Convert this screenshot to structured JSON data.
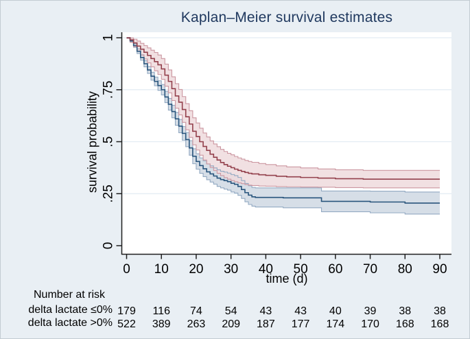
{
  "title": "Kaplan–Meier survival estimates",
  "colors": {
    "page_bg": "#e9eff4",
    "plot_bg": "#ffffff",
    "title": "#20395f",
    "grid": "#e2ecf3",
    "axis": "#1f1f1f",
    "red_line": "#93404c",
    "red_band_fill": "#efdadd",
    "red_band_edge": "#cb96a0",
    "blue_line": "#28547c",
    "blue_band_fill": "#d6dee7",
    "blue_band_edge": "#92a9c2"
  },
  "at_risk": {
    "header": "Number at risk",
    "rows": [
      {
        "label": "delta lactate ≤0%",
        "counts": [
          179,
          116,
          74,
          54,
          43,
          43,
          40,
          39,
          38,
          38
        ]
      },
      {
        "label": "delta lactate >0%",
        "counts": [
          522,
          389,
          263,
          209,
          187,
          177,
          174,
          170,
          168,
          168
        ]
      }
    ]
  },
  "chart_data": {
    "type": "line",
    "subtype": "kaplan-meier-step",
    "title": "Kaplan–Meier survival estimates",
    "xlabel": "time (d)",
    "ylabel": "survival probability",
    "xlim": [
      0,
      90
    ],
    "ylim": [
      0,
      1
    ],
    "grid": true,
    "x_ticks": [
      0,
      10,
      20,
      30,
      40,
      50,
      60,
      70,
      80,
      90
    ],
    "x_tick_labels": [
      "0",
      "10",
      "20",
      "30",
      "40",
      "50",
      "60",
      "70",
      "80",
      "90"
    ],
    "y_ticks": [
      0,
      0.25,
      0.5,
      0.75,
      1
    ],
    "y_tick_labels": [
      "0",
      ".25",
      ".5",
      ".75",
      "1"
    ],
    "legend_position": "none",
    "series": [
      {
        "name": "delta lactate >0%",
        "color": "#28547c",
        "band_fill": "#d6dee7",
        "band_edge": "#92a9c2",
        "band_opacity": 1,
        "points": [
          [
            0,
            1.0,
            0.998,
            1.0
          ],
          [
            1,
            0.985,
            0.98,
            0.99
          ],
          [
            2,
            0.962,
            0.954,
            0.97
          ],
          [
            3,
            0.935,
            0.924,
            0.946
          ],
          [
            4,
            0.905,
            0.892,
            0.918
          ],
          [
            5,
            0.875,
            0.86,
            0.89
          ],
          [
            6,
            0.845,
            0.828,
            0.862
          ],
          [
            7,
            0.815,
            0.796,
            0.834
          ],
          [
            8,
            0.79,
            0.769,
            0.811
          ],
          [
            9,
            0.77,
            0.747,
            0.793
          ],
          [
            10,
            0.75,
            0.725,
            0.775
          ],
          [
            11,
            0.715,
            0.688,
            0.742
          ],
          [
            12,
            0.68,
            0.652,
            0.708
          ],
          [
            13,
            0.645,
            0.615,
            0.675
          ],
          [
            14,
            0.61,
            0.579,
            0.641
          ],
          [
            15,
            0.575,
            0.543,
            0.607
          ],
          [
            16,
            0.54,
            0.507,
            0.573
          ],
          [
            17,
            0.51,
            0.476,
            0.544
          ],
          [
            18,
            0.47,
            0.435,
            0.505
          ],
          [
            19,
            0.43,
            0.394,
            0.466
          ],
          [
            20,
            0.405,
            0.368,
            0.442
          ],
          [
            21,
            0.385,
            0.348,
            0.422
          ],
          [
            22,
            0.37,
            0.332,
            0.408
          ],
          [
            23,
            0.355,
            0.317,
            0.393
          ],
          [
            24,
            0.345,
            0.306,
            0.384
          ],
          [
            25,
            0.335,
            0.296,
            0.374
          ],
          [
            26,
            0.325,
            0.285,
            0.365
          ],
          [
            27,
            0.318,
            0.278,
            0.358
          ],
          [
            28,
            0.313,
            0.272,
            0.354
          ],
          [
            29,
            0.308,
            0.267,
            0.349
          ],
          [
            30,
            0.3,
            0.258,
            0.342
          ],
          [
            31,
            0.295,
            0.253,
            0.337
          ],
          [
            32,
            0.285,
            0.242,
            0.328
          ],
          [
            33,
            0.27,
            0.227,
            0.313
          ],
          [
            34,
            0.255,
            0.211,
            0.299
          ],
          [
            35,
            0.243,
            0.198,
            0.288
          ],
          [
            36,
            0.235,
            0.19,
            0.28
          ],
          [
            37,
            0.232,
            0.186,
            0.278
          ],
          [
            45,
            0.23,
            0.182,
            0.278
          ],
          [
            56,
            0.213,
            0.163,
            0.263
          ],
          [
            70,
            0.21,
            0.158,
            0.262
          ],
          [
            80,
            0.205,
            0.152,
            0.258
          ],
          [
            90,
            0.205,
            0.152,
            0.258
          ]
        ]
      },
      {
        "name": "delta lactate ≤0%",
        "color": "#93404c",
        "band_fill": "#efdadd",
        "band_edge": "#cb96a0",
        "band_opacity": 0.85,
        "points": [
          [
            0,
            1.0,
            0.997,
            1.0
          ],
          [
            1,
            0.99,
            0.978,
            0.999
          ],
          [
            2,
            0.975,
            0.957,
            0.993
          ],
          [
            3,
            0.96,
            0.936,
            0.984
          ],
          [
            4,
            0.945,
            0.917,
            0.973
          ],
          [
            5,
            0.93,
            0.898,
            0.962
          ],
          [
            6,
            0.915,
            0.879,
            0.951
          ],
          [
            7,
            0.9,
            0.86,
            0.94
          ],
          [
            8,
            0.885,
            0.841,
            0.929
          ],
          [
            9,
            0.87,
            0.823,
            0.917
          ],
          [
            10,
            0.85,
            0.8,
            0.9
          ],
          [
            11,
            0.82,
            0.767,
            0.873
          ],
          [
            12,
            0.79,
            0.735,
            0.845
          ],
          [
            13,
            0.755,
            0.698,
            0.812
          ],
          [
            14,
            0.72,
            0.661,
            0.779
          ],
          [
            15,
            0.69,
            0.629,
            0.751
          ],
          [
            16,
            0.655,
            0.593,
            0.717
          ],
          [
            17,
            0.62,
            0.557,
            0.683
          ],
          [
            18,
            0.585,
            0.521,
            0.649
          ],
          [
            19,
            0.55,
            0.485,
            0.615
          ],
          [
            20,
            0.525,
            0.46,
            0.59
          ],
          [
            21,
            0.5,
            0.435,
            0.565
          ],
          [
            22,
            0.477,
            0.412,
            0.542
          ],
          [
            23,
            0.458,
            0.393,
            0.523
          ],
          [
            24,
            0.44,
            0.376,
            0.504
          ],
          [
            25,
            0.425,
            0.361,
            0.489
          ],
          [
            26,
            0.412,
            0.348,
            0.476
          ],
          [
            27,
            0.4,
            0.337,
            0.463
          ],
          [
            28,
            0.39,
            0.327,
            0.453
          ],
          [
            29,
            0.382,
            0.32,
            0.444
          ],
          [
            30,
            0.375,
            0.313,
            0.437
          ],
          [
            31,
            0.368,
            0.307,
            0.429
          ],
          [
            32,
            0.362,
            0.302,
            0.422
          ],
          [
            33,
            0.357,
            0.298,
            0.416
          ],
          [
            34,
            0.352,
            0.294,
            0.41
          ],
          [
            35,
            0.348,
            0.291,
            0.405
          ],
          [
            36,
            0.345,
            0.289,
            0.401
          ],
          [
            38,
            0.341,
            0.287,
            0.395
          ],
          [
            40,
            0.338,
            0.286,
            0.39
          ],
          [
            43,
            0.334,
            0.284,
            0.384
          ],
          [
            46,
            0.331,
            0.283,
            0.379
          ],
          [
            50,
            0.328,
            0.282,
            0.374
          ],
          [
            55,
            0.325,
            0.281,
            0.369
          ],
          [
            60,
            0.322,
            0.279,
            0.365
          ],
          [
            68,
            0.32,
            0.278,
            0.362
          ],
          [
            90,
            0.32,
            0.278,
            0.362
          ]
        ]
      }
    ]
  }
}
